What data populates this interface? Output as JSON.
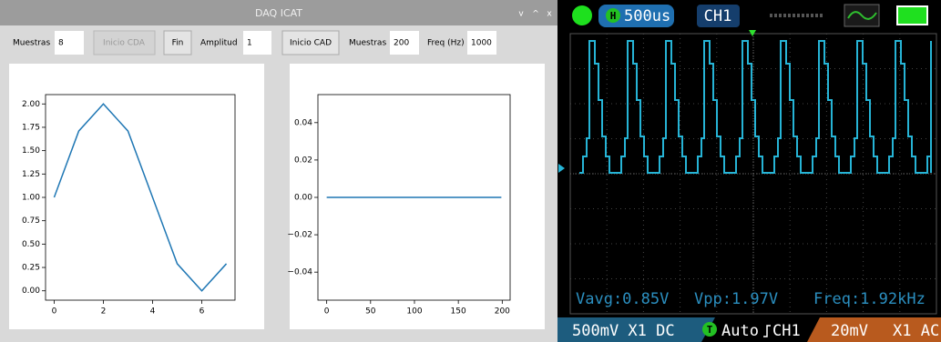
{
  "window": {
    "title": "DAQ ICAT",
    "window_buttons": [
      "v",
      "^",
      "x"
    ],
    "controls": {
      "muestras_label": "Muestras",
      "muestras_value": "8",
      "inicio_cda": "Inicio CDA",
      "fin": "Fin",
      "amplitud_label": "Amplitud",
      "amplitud_value": "1",
      "inicio_cad": "Inicio CAD",
      "muestras2_label": "Muestras",
      "muestras2_value": "200",
      "freq_label": "Freq (Hz)",
      "freq_value": "1000"
    }
  },
  "chart_data": [
    {
      "type": "line",
      "color": "#1f77b4",
      "x": [
        0,
        1,
        2,
        3,
        4,
        5,
        6,
        7
      ],
      "values": [
        1,
        1.71,
        2,
        1.71,
        1,
        0.29,
        0,
        0.29
      ],
      "xlim": [
        -0.35,
        7.35
      ],
      "ylim": [
        -0.1,
        2.1
      ],
      "xticks": [
        0,
        2,
        4,
        6
      ],
      "yticks": [
        {
          "value": 0,
          "label": "0.00"
        },
        {
          "value": 0.25,
          "label": "0.25"
        },
        {
          "value": 0.5,
          "label": "0.50"
        },
        {
          "value": 0.75,
          "label": "0.75"
        },
        {
          "value": 1,
          "label": "1.00"
        },
        {
          "value": 1.25,
          "label": "1.25"
        },
        {
          "value": 1.5,
          "label": "1.50"
        },
        {
          "value": 1.75,
          "label": "1.75"
        },
        {
          "value": 2,
          "label": "2.00"
        }
      ]
    },
    {
      "type": "line",
      "color": "#1f77b4",
      "x": [
        0,
        1,
        2,
        3,
        4,
        5,
        6,
        7,
        8,
        9,
        10,
        11,
        12,
        13,
        14,
        15,
        16,
        17,
        18,
        19,
        20,
        21,
        22,
        23,
        24,
        25,
        26,
        27,
        28,
        29,
        30,
        31,
        32,
        33,
        34,
        35,
        36,
        37,
        38,
        39,
        40,
        41,
        42,
        43,
        44,
        45,
        46,
        47,
        48,
        49,
        50,
        51,
        52,
        53,
        54,
        55,
        56,
        57,
        58,
        59,
        60,
        61,
        62,
        63,
        64,
        65,
        66,
        67,
        68,
        69,
        70,
        71,
        72,
        73,
        74,
        75,
        76,
        77,
        78,
        79,
        80,
        81,
        82,
        83,
        84,
        85,
        86,
        87,
        88,
        89,
        90,
        91,
        92,
        93,
        94,
        95,
        96,
        97,
        98,
        99,
        100,
        101,
        102,
        103,
        104,
        105,
        106,
        107,
        108,
        109,
        110,
        111,
        112,
        113,
        114,
        115,
        116,
        117,
        118,
        119,
        120,
        121,
        122,
        123,
        124,
        125,
        126,
        127,
        128,
        129,
        130,
        131,
        132,
        133,
        134,
        135,
        136,
        137,
        138,
        139,
        140,
        141,
        142,
        143,
        144,
        145,
        146,
        147,
        148,
        149,
        150,
        151,
        152,
        153,
        154,
        155,
        156,
        157,
        158,
        159,
        160,
        161,
        162,
        163,
        164,
        165,
        166,
        167,
        168,
        169,
        170,
        171,
        172,
        173,
        174,
        175,
        176,
        177,
        178,
        179,
        180,
        181,
        182,
        183,
        184,
        185,
        186,
        187,
        188,
        189,
        190,
        191,
        192,
        193,
        194,
        195,
        196,
        197,
        198,
        199
      ],
      "values": [
        0,
        0,
        0,
        0,
        0,
        0,
        0,
        0,
        0,
        0,
        0,
        0,
        0,
        0,
        0,
        0,
        0,
        0,
        0,
        0,
        0,
        0,
        0,
        0,
        0,
        0,
        0,
        0,
        0,
        0,
        0,
        0,
        0,
        0,
        0,
        0,
        0,
        0,
        0,
        0,
        0,
        0,
        0,
        0,
        0,
        0,
        0,
        0,
        0,
        0,
        0,
        0,
        0,
        0,
        0,
        0,
        0,
        0,
        0,
        0,
        0,
        0,
        0,
        0,
        0,
        0,
        0,
        0,
        0,
        0,
        0,
        0,
        0,
        0,
        0,
        0,
        0,
        0,
        0,
        0,
        0,
        0,
        0,
        0,
        0,
        0,
        0,
        0,
        0,
        0,
        0,
        0,
        0,
        0,
        0,
        0,
        0,
        0,
        0,
        0,
        0,
        0,
        0,
        0,
        0,
        0,
        0,
        0,
        0,
        0,
        0,
        0,
        0,
        0,
        0,
        0,
        0,
        0,
        0,
        0,
        0,
        0,
        0,
        0,
        0,
        0,
        0,
        0,
        0,
        0,
        0,
        0,
        0,
        0,
        0,
        0,
        0,
        0,
        0,
        0,
        0,
        0,
        0,
        0,
        0,
        0,
        0,
        0,
        0,
        0,
        0,
        0,
        0,
        0,
        0,
        0,
        0,
        0,
        0,
        0,
        0,
        0,
        0,
        0,
        0,
        0,
        0,
        0,
        0,
        0,
        0,
        0,
        0,
        0,
        0,
        0,
        0,
        0,
        0,
        0,
        0,
        0,
        0,
        0,
        0,
        0,
        0,
        0,
        0,
        0,
        0,
        0,
        0,
        0,
        0,
        0,
        0,
        0,
        0,
        0
      ],
      "xlim": [
        -10,
        209
      ],
      "ylim": [
        -0.055,
        0.055
      ],
      "xticks": [
        0,
        50,
        100,
        150,
        200
      ],
      "yticks": [
        {
          "value": -0.04,
          "label": "−0.04"
        },
        {
          "value": -0.02,
          "label": "−0.02"
        },
        {
          "value": 0,
          "label": "0.00"
        },
        {
          "value": 0.02,
          "label": "0.02"
        },
        {
          "value": 0.04,
          "label": "0.04"
        }
      ]
    }
  ],
  "scope": {
    "timebase_icon": "H",
    "timebase": "500us",
    "channel": "CH1",
    "vavg": "Vavg:0.85V",
    "vpp": "Vpp:1.97V",
    "freq": "Freq:1.92kHz",
    "ch1_setting": "500mV X1 DC",
    "trigger_icon": "T",
    "trigger_mode": "Auto",
    "trigger_source": "CH1",
    "ch2_volts": "20mV",
    "ch2_setting": "X1 AC"
  }
}
